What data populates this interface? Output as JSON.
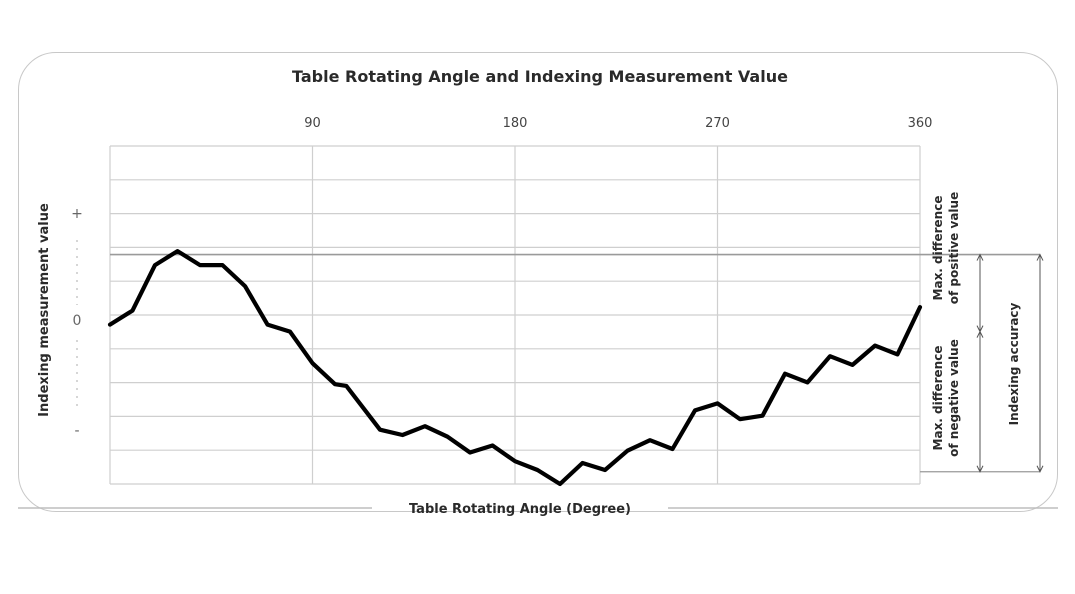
{
  "chart_data": {
    "type": "line",
    "title": "Table Rotating Angle and Indexing Measurement Value",
    "xlabel": "Table Rotating Angle (Degree)",
    "ylabel": "Indexing measurement value",
    "xlim": [
      0,
      360
    ],
    "ylim": [
      -4.35,
      5.3
    ],
    "x_ticks": [
      "90",
      "180",
      "270",
      "360"
    ],
    "y_tick_labels": [
      "+",
      "0",
      "-"
    ],
    "grid": true,
    "legend": "none",
    "reference_lines": {
      "max_positive": 2.2,
      "min_negative": -4.0
    },
    "annotations": {
      "positive": "Max. difference of positive value",
      "negative": "Max. difference of negative value",
      "accuracy": "Indexing accuracy"
    },
    "series": [
      {
        "color": "#000000",
        "x": [
          0,
          10,
          20,
          30,
          40,
          50,
          60,
          70,
          80,
          90,
          100,
          105,
          120,
          130,
          140,
          150,
          160,
          170,
          180,
          190,
          200,
          210,
          220,
          230,
          240,
          250,
          260,
          270,
          280,
          290,
          300,
          310,
          320,
          330,
          340,
          350,
          360
        ],
        "y": [
          0.2,
          0.6,
          1.9,
          2.3,
          1.9,
          1.9,
          1.3,
          0.2,
          0.0,
          -0.9,
          -1.5,
          -1.55,
          -2.8,
          -2.95,
          -2.7,
          -3.0,
          -3.45,
          -3.25,
          -3.7,
          -3.95,
          -4.35,
          -3.75,
          -3.95,
          -3.4,
          -3.1,
          -3.35,
          -2.25,
          -2.05,
          -2.5,
          -2.4,
          -1.2,
          -1.45,
          -0.7,
          -0.95,
          -0.4,
          -0.65,
          0.7
        ]
      }
    ]
  }
}
